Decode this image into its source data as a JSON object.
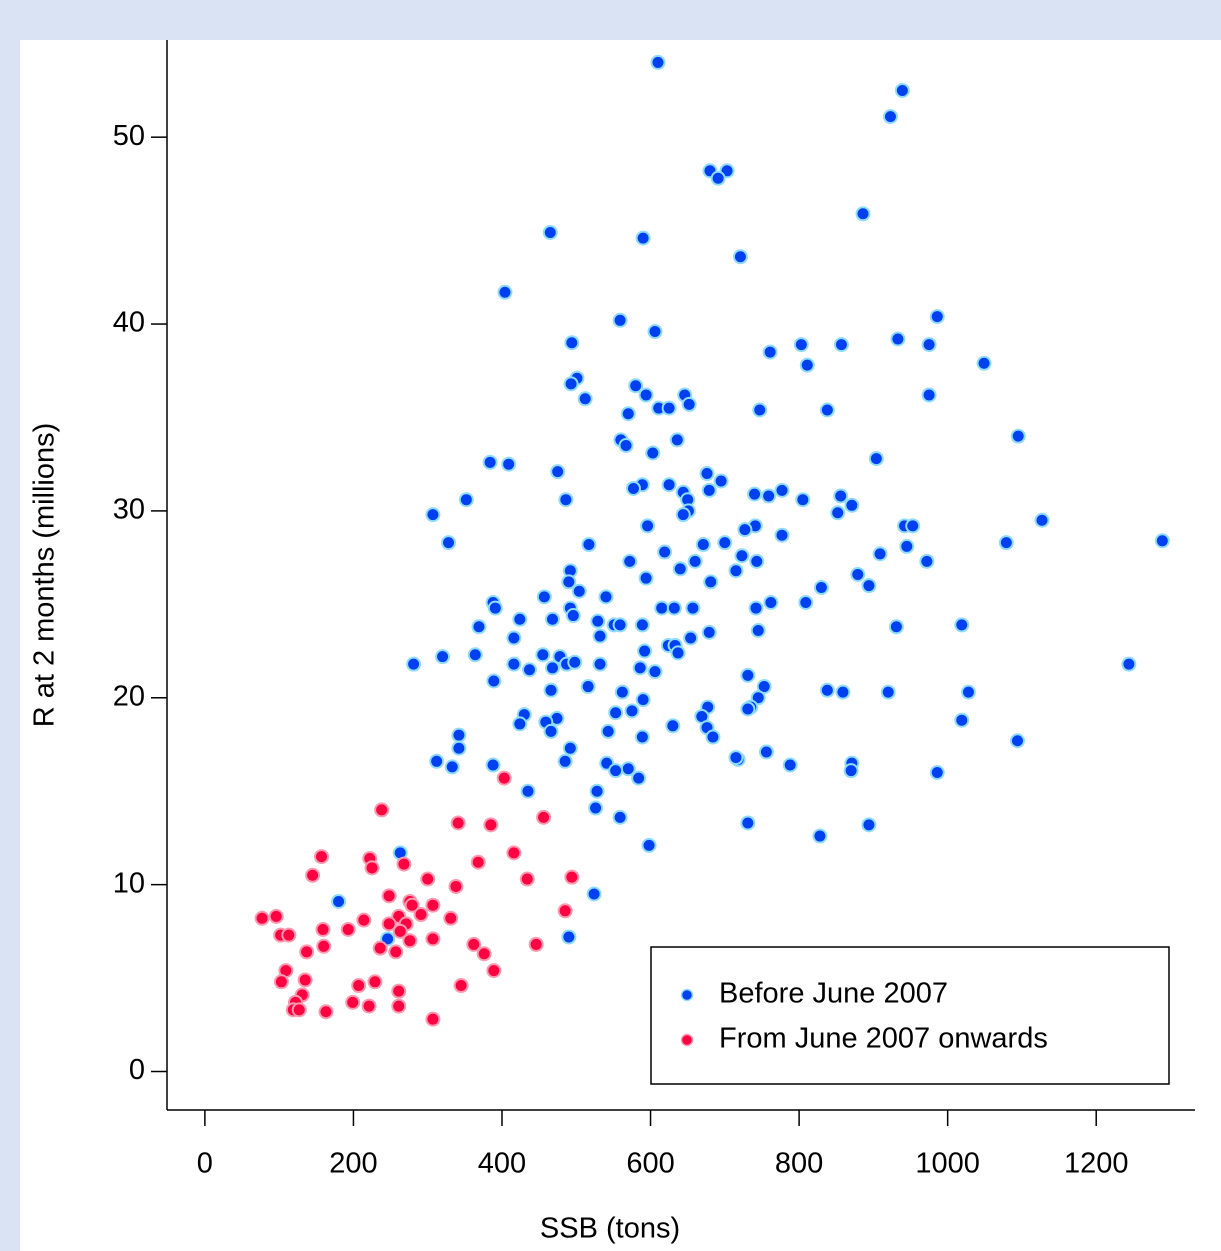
{
  "chart_data": {
    "type": "scatter",
    "x_label": "SSB (tons)",
    "y_label": "R at 2 months (millions)",
    "xlim": [
      -51,
      1333
    ],
    "ylim": [
      -2.06,
      55.2
    ],
    "xticks": [
      0,
      200,
      400,
      600,
      800,
      1000,
      1200
    ],
    "yticks": [
      0,
      10,
      20,
      30,
      40,
      50
    ],
    "legend": "bottom-right",
    "series": [
      {
        "name": "Before June 2007",
        "color": "#0040f0",
        "edge": "#8fdcff",
        "x": [
          610,
          939,
          923,
          680,
          703,
          691,
          886,
          465,
          590,
          721,
          404,
          986,
          559,
          606,
          494,
          933,
          975,
          803,
          857,
          761,
          1049,
          811,
          501,
          493,
          580,
          594,
          646,
          975,
          512,
          652,
          611,
          625,
          570,
          747,
          838,
          560,
          567,
          636,
          1095,
          603,
          904,
          384,
          409,
          475,
          676,
          695,
          589,
          625,
          577,
          644,
          679,
          740,
          759,
          777,
          650,
          805,
          856,
          871,
          352,
          486,
          651,
          852,
          307,
          644,
          1127,
          596,
          741,
          942,
          953,
          727,
          517,
          328,
          671,
          700,
          777,
          1079,
          1289,
          945,
          909,
          619,
          723,
          572,
          660,
          743,
          972,
          715,
          640,
          492,
          594,
          879,
          894,
          490,
          681,
          504,
          830,
          540,
          457,
          388,
          762,
          809,
          391,
          492,
          742,
          615,
          632,
          657,
          496,
          468,
          424,
          529,
          551,
          559,
          589,
          1019,
          369,
          931,
          745,
          532,
          654,
          679,
          416,
          624,
          633,
          592,
          637,
          364,
          455,
          320,
          478,
          532,
          281,
          416,
          487,
          498,
          1244,
          586,
          468,
          437,
          606,
          731,
          389,
          466,
          753,
          516,
          838,
          859,
          920,
          1028,
          562,
          745,
          590,
          735,
          677,
          575,
          731,
          553,
          669,
          430,
          474,
          424,
          1019,
          459,
          630,
          543,
          676,
          466,
          342,
          589,
          684,
          492,
          342,
          1094,
          756,
          312,
          485,
          541,
          333,
          388,
          871,
          718,
          788,
          715,
          570,
          553,
          870,
          986,
          584,
          435,
          528,
          526,
          559,
          731,
          894,
          828,
          598,
          263,
          524,
          180,
          490,
          246
        ],
        "values": [
          54.0,
          52.5,
          51.1,
          48.2,
          48.2,
          47.8,
          45.9,
          44.9,
          44.6,
          43.6,
          41.7,
          40.4,
          40.2,
          39.6,
          39.0,
          39.2,
          38.9,
          38.9,
          38.9,
          38.5,
          37.9,
          37.8,
          37.1,
          36.8,
          36.7,
          36.2,
          36.2,
          36.2,
          36.0,
          35.7,
          35.5,
          35.5,
          35.2,
          35.4,
          35.4,
          33.8,
          33.5,
          33.8,
          34.0,
          33.1,
          32.8,
          32.6,
          32.5,
          32.1,
          32.0,
          31.6,
          31.4,
          31.4,
          31.2,
          31.0,
          31.1,
          30.9,
          30.8,
          31.1,
          30.6,
          30.6,
          30.8,
          30.3,
          30.6,
          30.6,
          30.0,
          29.9,
          29.8,
          29.8,
          29.5,
          29.2,
          29.2,
          29.2,
          29.2,
          29.0,
          28.2,
          28.3,
          28.2,
          28.3,
          28.7,
          28.3,
          28.4,
          28.1,
          27.7,
          27.8,
          27.6,
          27.3,
          27.3,
          27.3,
          27.3,
          26.8,
          26.9,
          26.8,
          26.4,
          26.6,
          26.0,
          26.2,
          26.2,
          25.7,
          25.9,
          25.4,
          25.4,
          25.1,
          25.1,
          25.1,
          24.8,
          24.8,
          24.8,
          24.8,
          24.8,
          24.8,
          24.4,
          24.2,
          24.2,
          24.1,
          23.9,
          23.9,
          23.9,
          23.9,
          23.8,
          23.8,
          23.6,
          23.3,
          23.2,
          23.5,
          23.2,
          22.8,
          22.8,
          22.5,
          22.4,
          22.3,
          22.3,
          22.2,
          22.2,
          21.8,
          21.8,
          21.8,
          21.8,
          21.9,
          21.8,
          21.6,
          21.6,
          21.5,
          21.4,
          21.2,
          20.9,
          20.4,
          20.6,
          20.6,
          20.4,
          20.3,
          20.3,
          20.3,
          20.3,
          20.0,
          19.9,
          19.5,
          19.5,
          19.3,
          19.4,
          19.2,
          19.0,
          19.1,
          18.9,
          18.6,
          18.8,
          18.7,
          18.5,
          18.2,
          18.4,
          18.2,
          18.0,
          17.9,
          17.9,
          17.3,
          17.3,
          17.7,
          17.1,
          16.6,
          16.6,
          16.5,
          16.3,
          16.4,
          16.5,
          16.7,
          16.4,
          16.8,
          16.2,
          16.1,
          16.1,
          16.0,
          15.7,
          15.0,
          15.0,
          14.1,
          13.6,
          13.3,
          13.2,
          12.6,
          12.1,
          11.7,
          9.5,
          9.1,
          7.2,
          7.1
        ]
      },
      {
        "name": "From June 2007 onwards",
        "color": "#ff0040",
        "edge": "#ff9ab0",
        "x": [
          403,
          238,
          456,
          341,
          385,
          157,
          222,
          416,
          268,
          368,
          225,
          145,
          434,
          300,
          494,
          338,
          248,
          276,
          307,
          279,
          485,
          261,
          291,
          331,
          96,
          77,
          214,
          248,
          271,
          193,
          159,
          263,
          102,
          113,
          307,
          276,
          236,
          160,
          362,
          446,
          137,
          257,
          376,
          109,
          389,
          103,
          135,
          229,
          207,
          345,
          261,
          131,
          122,
          199,
          221,
          261,
          119,
          127,
          163,
          307
        ],
        "values": [
          15.7,
          14.0,
          13.6,
          13.3,
          13.2,
          11.5,
          11.4,
          11.7,
          11.1,
          11.2,
          10.9,
          10.5,
          10.3,
          10.3,
          10.4,
          9.9,
          9.4,
          9.1,
          8.9,
          8.9,
          8.6,
          8.3,
          8.4,
          8.2,
          8.3,
          8.2,
          8.1,
          7.9,
          7.9,
          7.6,
          7.6,
          7.5,
          7.3,
          7.3,
          7.1,
          7.0,
          6.6,
          6.7,
          6.8,
          6.8,
          6.4,
          6.4,
          6.3,
          5.4,
          5.4,
          4.8,
          4.9,
          4.8,
          4.6,
          4.6,
          4.3,
          4.1,
          3.7,
          3.7,
          3.5,
          3.5,
          3.3,
          3.3,
          3.2,
          2.8
        ]
      }
    ]
  }
}
